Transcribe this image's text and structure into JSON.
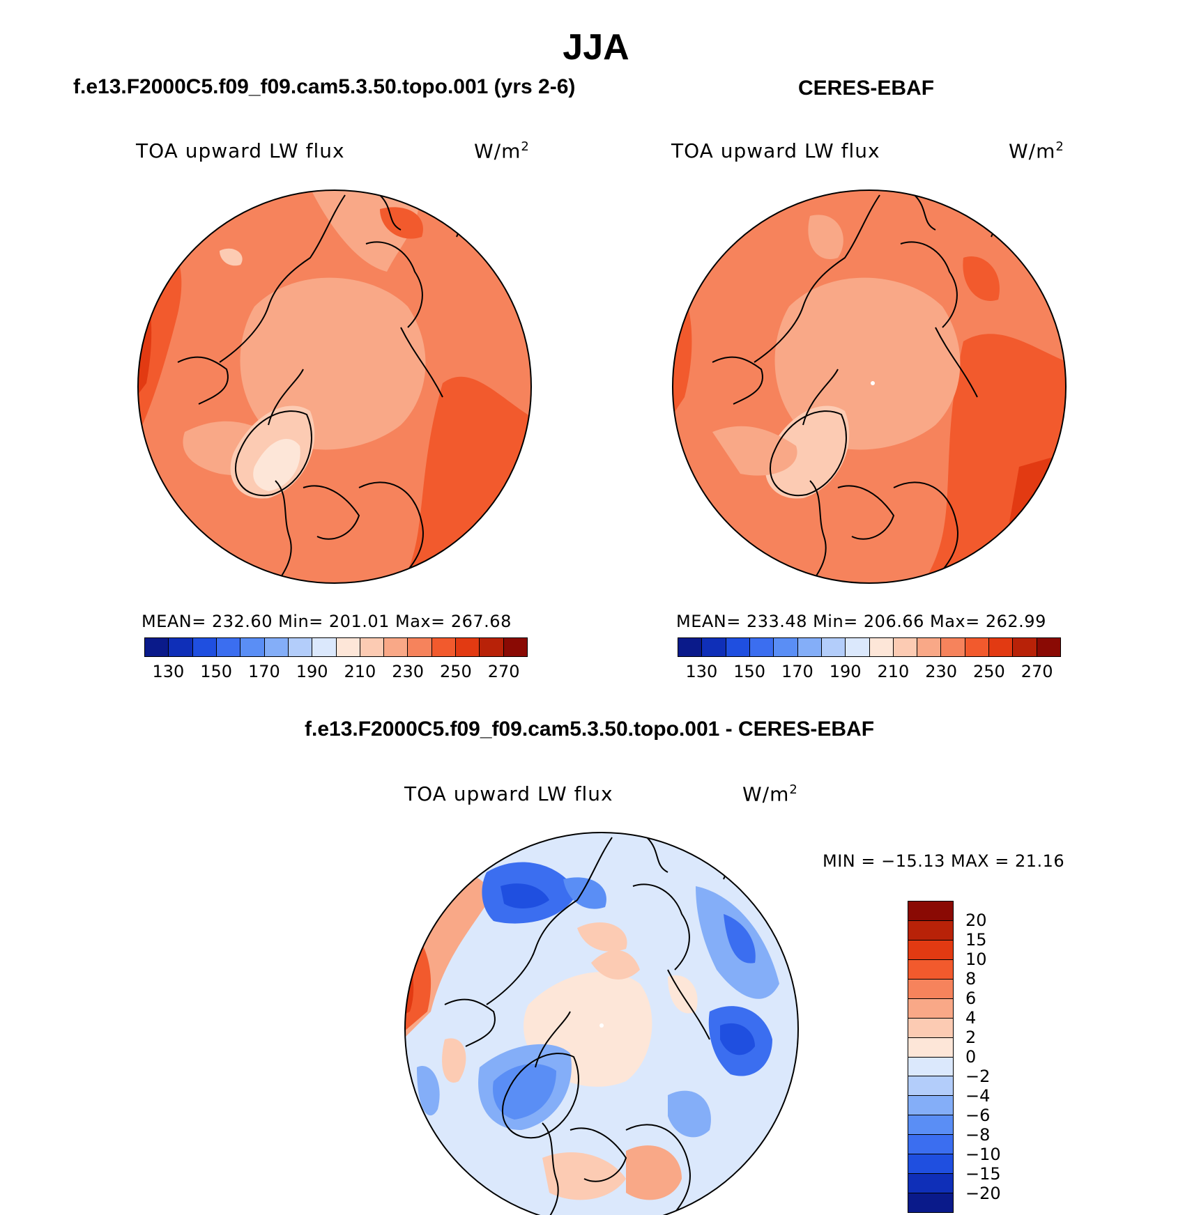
{
  "title": "JJA",
  "panels": [
    {
      "title": "f.e13.F2000C5.f09_f09.cam5.3.50.topo.001 (yrs 2-6)",
      "variable": "TOA upward LW flux",
      "units": "W/m",
      "units_sup": "2",
      "stats": "MEAN= 232.60   Min= 201.01   Max= 267.68"
    },
    {
      "title": "CERES-EBAF",
      "variable": "TOA upward LW flux",
      "units": "W/m",
      "units_sup": "2",
      "stats": "MEAN= 233.48   Min= 206.66   Max= 262.99"
    },
    {
      "title": "f.e13.F2000C5.f09_f09.cam5.3.50.topo.001 - CERES-EBAF",
      "variable": "TOA upward LW flux",
      "units": "W/m",
      "units_sup": "2",
      "stats": "MIN = −15.13 MAX =  21.16"
    }
  ],
  "colorbar_abs": {
    "colors": [
      "#0a1a8a",
      "#0f2fb8",
      "#1f4fe0",
      "#3b6ef0",
      "#5a8ef5",
      "#84aef8",
      "#b3cdfa",
      "#dbe8fc",
      "#fde6d8",
      "#fccbb3",
      "#f9a887",
      "#f6835c",
      "#f25a2d",
      "#e23a12",
      "#b82208",
      "#8a0a04"
    ],
    "ticks": [
      "130",
      "150",
      "170",
      "190",
      "210",
      "230",
      "250",
      "270"
    ]
  },
  "colorbar_diff": {
    "colors": [
      "#8a0a04",
      "#b82208",
      "#e23a12",
      "#f25a2d",
      "#f6835c",
      "#f9a887",
      "#fccbb3",
      "#fde6d8",
      "#dbe8fc",
      "#b3cdfa",
      "#84aef8",
      "#5a8ef5",
      "#3b6ef0",
      "#1f4fe0",
      "#0f2fb8",
      "#0a1a8a"
    ],
    "ticks": [
      "20",
      "15",
      "10",
      "8",
      "6",
      "4",
      "2",
      "0",
      "−2",
      "−4",
      "−6",
      "−8",
      "−10",
      "−15",
      "−20"
    ]
  }
}
